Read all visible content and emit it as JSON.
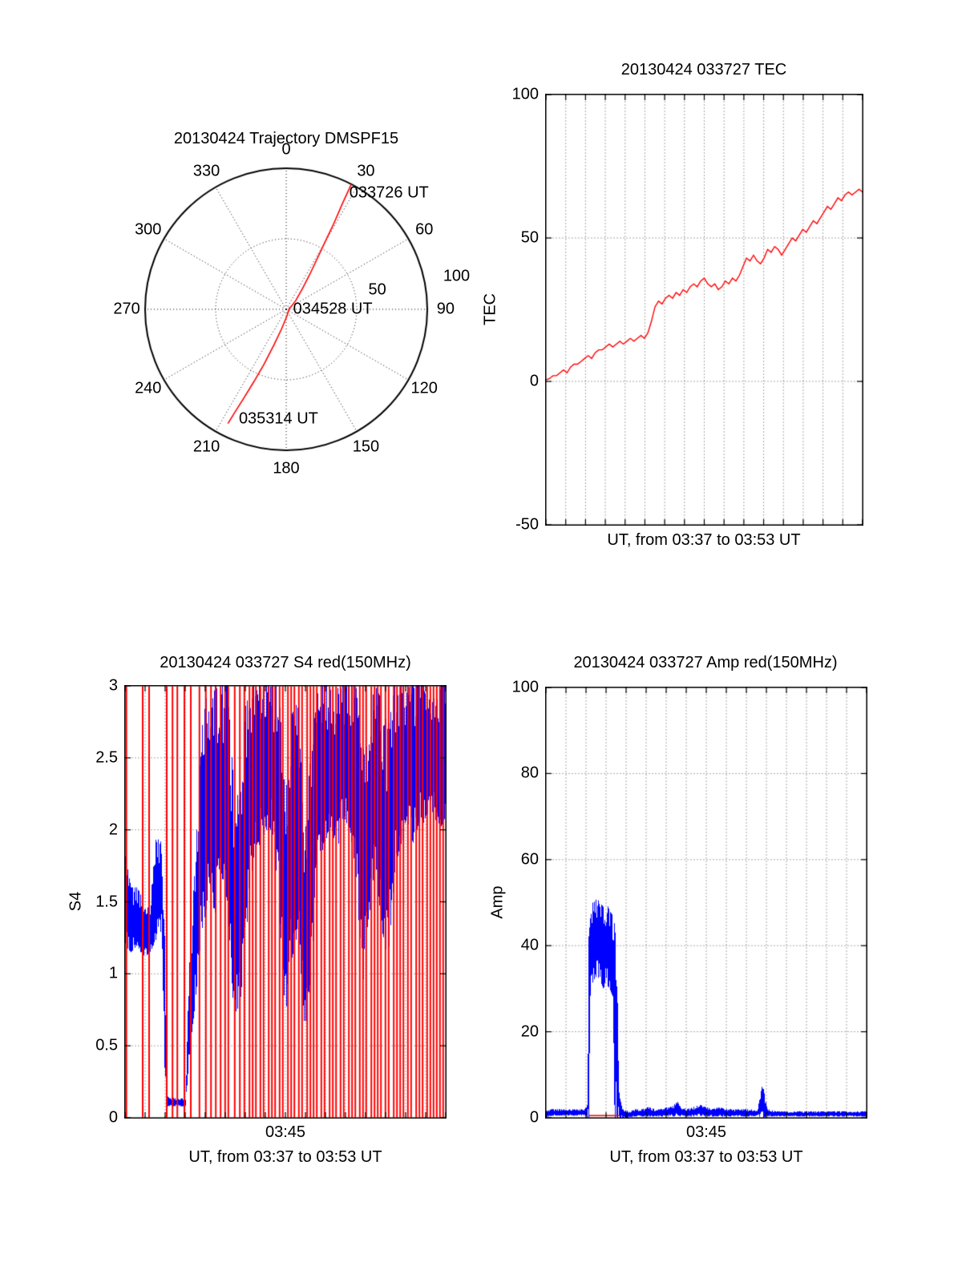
{
  "chart_data": [
    {
      "type": "line",
      "subtype": "polar-trajectory",
      "title": "20130424 Trajectory DMSPF15",
      "azimuth_tick_labels": [
        "0",
        "30",
        "60",
        "90",
        "120",
        "150",
        "180",
        "210",
        "240",
        "270",
        "300",
        "330"
      ],
      "radial_tick_labels": [
        {
          "text": "50",
          "az": 78,
          "r": 0.66
        },
        {
          "text": "100",
          "az": 79,
          "r": 1.23
        }
      ],
      "annotations": [
        {
          "text": "033726 UT",
          "az": 41.5,
          "r": 1.1
        },
        {
          "text": "034528 UT",
          "az": 90,
          "r": 0.33
        },
        {
          "text": "035314 UT",
          "az": 184,
          "r": 0.78
        }
      ],
      "series": [
        {
          "name": "satellite-pass-trajectory",
          "color": "#ff0000",
          "points_az_r": [
            [
              27.5,
              1.0
            ],
            [
              28,
              0.85
            ],
            [
              29,
              0.7
            ],
            [
              30,
              0.55
            ],
            [
              31.5,
              0.42
            ],
            [
              34,
              0.3
            ],
            [
              38,
              0.19
            ],
            [
              48,
              0.09
            ],
            [
              90,
              0.02
            ],
            [
              175,
              0.05
            ],
            [
              193,
              0.14
            ],
            [
              199,
              0.27
            ],
            [
              202,
              0.42
            ],
            [
              204,
              0.56
            ],
            [
              205.5,
              0.7
            ],
            [
              206.5,
              0.82
            ],
            [
              207,
              0.91
            ]
          ]
        }
      ]
    },
    {
      "type": "line",
      "title": "20130424 033727 TEC",
      "ylabel": "TEC",
      "xlabel": "UT, from 03:37 to 03:53 UT",
      "ylim": [
        -50,
        100
      ],
      "yticks": [
        100,
        50,
        0,
        -50
      ],
      "hgrid": [
        50,
        0
      ],
      "x_minute_intervals": 16,
      "line_color": "#ff0000",
      "values": [
        0.5,
        1,
        2,
        2,
        3,
        4,
        3,
        5,
        6,
        6,
        7,
        8,
        9,
        8,
        10,
        11,
        11,
        12,
        13,
        12,
        13,
        14,
        13,
        14,
        15,
        14,
        15,
        16,
        15,
        17,
        21,
        26,
        28,
        27,
        29,
        30,
        29,
        31,
        30,
        32,
        31,
        33,
        34,
        33,
        35,
        36,
        34,
        33,
        34,
        32,
        33,
        35,
        34,
        36,
        35,
        37,
        40,
        43,
        42,
        44,
        42,
        41,
        43,
        46,
        45,
        47,
        46,
        44,
        46,
        48,
        50,
        49,
        51,
        53,
        52,
        54,
        56,
        55,
        57,
        59,
        61,
        60,
        62,
        64,
        63,
        65,
        66,
        65,
        66,
        67,
        66
      ]
    },
    {
      "type": "line",
      "title": "20130424 033727 S4 red(150MHz)",
      "ylabel": "S4",
      "xlabel": "UT, from 03:37 to 03:53 UT",
      "xticks": [
        "03:45"
      ],
      "ylim": [
        0,
        3
      ],
      "yticks": [
        3,
        2.5,
        2,
        1.5,
        1,
        0.5,
        0
      ],
      "hgrid": [
        2.5,
        2,
        1.5,
        1,
        0.5
      ],
      "x_minute_intervals": 16,
      "envelope_color": "#0000ff",
      "red_line_color": "#ff0000",
      "blue_envelope": [
        [
          0.0,
          1.2,
          1.85
        ],
        [
          0.02,
          1.15,
          1.6
        ],
        [
          0.04,
          1.2,
          1.6
        ],
        [
          0.06,
          1.1,
          1.5
        ],
        [
          0.08,
          1.15,
          1.5
        ],
        [
          0.1,
          1.25,
          2.0
        ],
        [
          0.115,
          1.3,
          1.9
        ],
        [
          0.125,
          0.3,
          1.3
        ],
        [
          0.13,
          0.08,
          0.15
        ],
        [
          0.15,
          0.08,
          0.14
        ],
        [
          0.17,
          0.08,
          0.13
        ],
        [
          0.19,
          0.08,
          0.14
        ],
        [
          0.2,
          0.4,
          1.0
        ],
        [
          0.22,
          0.8,
          1.8
        ],
        [
          0.24,
          1.3,
          2.7
        ],
        [
          0.26,
          1.5,
          3.0
        ],
        [
          0.28,
          1.4,
          3.0
        ],
        [
          0.3,
          1.7,
          3.0
        ],
        [
          0.32,
          1.5,
          3.0
        ],
        [
          0.34,
          0.7,
          2.3
        ],
        [
          0.36,
          0.8,
          2.2
        ],
        [
          0.38,
          1.3,
          3.0
        ],
        [
          0.4,
          1.8,
          3.0
        ],
        [
          0.42,
          1.9,
          3.0
        ],
        [
          0.44,
          2.0,
          3.0
        ],
        [
          0.46,
          2.0,
          3.0
        ],
        [
          0.48,
          1.5,
          3.0
        ],
        [
          0.5,
          0.7,
          2.2
        ],
        [
          0.52,
          1.1,
          2.8
        ],
        [
          0.54,
          1.3,
          2.9
        ],
        [
          0.56,
          0.6,
          1.9
        ],
        [
          0.58,
          1.0,
          2.6
        ],
        [
          0.6,
          1.7,
          3.0
        ],
        [
          0.62,
          1.9,
          3.0
        ],
        [
          0.64,
          2.0,
          3.0
        ],
        [
          0.66,
          1.8,
          3.0
        ],
        [
          0.68,
          2.1,
          3.0
        ],
        [
          0.7,
          2.0,
          3.0
        ],
        [
          0.72,
          1.7,
          3.0
        ],
        [
          0.74,
          0.9,
          2.5
        ],
        [
          0.76,
          1.3,
          2.9
        ],
        [
          0.78,
          1.8,
          3.0
        ],
        [
          0.8,
          1.3,
          2.9
        ],
        [
          0.82,
          1.1,
          2.7
        ],
        [
          0.84,
          1.7,
          3.0
        ],
        [
          0.86,
          1.9,
          3.0
        ],
        [
          0.88,
          2.0,
          3.0
        ],
        [
          0.9,
          1.9,
          3.0
        ],
        [
          0.92,
          2.1,
          3.0
        ],
        [
          0.94,
          2.0,
          3.0
        ],
        [
          0.96,
          2.1,
          3.0
        ],
        [
          0.98,
          2.0,
          3.0
        ],
        [
          1.0,
          2.1,
          3.0
        ]
      ],
      "red_lines": [
        0.004,
        0.055,
        0.075,
        0.13,
        0.148,
        0.163,
        0.185,
        0.205,
        0.232,
        0.252,
        0.268,
        0.283,
        0.298,
        0.312,
        0.322,
        0.342,
        0.358,
        0.372,
        0.388,
        0.398,
        0.408,
        0.422,
        0.432,
        0.448,
        0.458,
        0.468,
        0.482,
        0.492,
        0.508,
        0.518,
        0.528,
        0.542,
        0.552,
        0.568,
        0.578,
        0.588,
        0.598,
        0.612,
        0.622,
        0.638,
        0.648,
        0.658,
        0.672,
        0.682,
        0.698,
        0.708,
        0.718,
        0.732,
        0.742,
        0.752,
        0.768,
        0.778,
        0.788,
        0.798,
        0.812,
        0.822,
        0.838,
        0.848,
        0.858,
        0.868,
        0.882,
        0.892,
        0.908,
        0.918,
        0.928,
        0.942,
        0.952,
        0.962,
        0.972,
        0.982,
        0.992
      ]
    },
    {
      "type": "line",
      "title": "20130424 033727 Amp red(150MHz)",
      "ylabel": "Amp",
      "xlabel": "UT, from 03:37 to 03:53 UT",
      "xticks": [
        "03:45"
      ],
      "ylim": [
        0,
        100
      ],
      "yticks": [
        100,
        80,
        60,
        40,
        20,
        0
      ],
      "hgrid": [
        80,
        60,
        40,
        20
      ],
      "x_minute_intervals": 16,
      "envelope_color": "#0000ff",
      "red_line_color": "#ff0000",
      "blue_envelope": [
        [
          0.0,
          0,
          1.5
        ],
        [
          0.02,
          0.5,
          2
        ],
        [
          0.04,
          0.5,
          2
        ],
        [
          0.06,
          0.5,
          2
        ],
        [
          0.08,
          0.5,
          2
        ],
        [
          0.1,
          0.5,
          2
        ],
        [
          0.12,
          0.5,
          2
        ],
        [
          0.13,
          0,
          3
        ],
        [
          0.135,
          0,
          45
        ],
        [
          0.14,
          30,
          50
        ],
        [
          0.15,
          32,
          50
        ],
        [
          0.16,
          33,
          51
        ],
        [
          0.17,
          32,
          50
        ],
        [
          0.18,
          30,
          49
        ],
        [
          0.19,
          31,
          50
        ],
        [
          0.2,
          30,
          48
        ],
        [
          0.21,
          28,
          47
        ],
        [
          0.215,
          0,
          45
        ],
        [
          0.22,
          0,
          40
        ],
        [
          0.225,
          0,
          25
        ],
        [
          0.23,
          0,
          5
        ],
        [
          0.24,
          0,
          2
        ],
        [
          0.26,
          0,
          1.5
        ],
        [
          0.28,
          0.3,
          2
        ],
        [
          0.3,
          0.3,
          2
        ],
        [
          0.32,
          0.3,
          2.5
        ],
        [
          0.34,
          0.3,
          2
        ],
        [
          0.36,
          0.3,
          2
        ],
        [
          0.38,
          0.3,
          2.5
        ],
        [
          0.4,
          0.3,
          3
        ],
        [
          0.41,
          0.5,
          4
        ],
        [
          0.42,
          0.3,
          2.5
        ],
        [
          0.44,
          0.3,
          2
        ],
        [
          0.46,
          0.3,
          2.5
        ],
        [
          0.48,
          0.5,
          3
        ],
        [
          0.5,
          0.3,
          2.5
        ],
        [
          0.52,
          0.3,
          2
        ],
        [
          0.54,
          0.3,
          2.5
        ],
        [
          0.56,
          0.3,
          2
        ],
        [
          0.58,
          0.3,
          2
        ],
        [
          0.6,
          0.3,
          2
        ],
        [
          0.62,
          0.3,
          2
        ],
        [
          0.64,
          0.3,
          2
        ],
        [
          0.66,
          0.3,
          2
        ],
        [
          0.675,
          0,
          8
        ],
        [
          0.69,
          0.3,
          2
        ],
        [
          0.72,
          0.3,
          1.5
        ],
        [
          0.76,
          0.3,
          1.5
        ],
        [
          0.8,
          0.3,
          1.5
        ],
        [
          0.84,
          0.3,
          1.5
        ],
        [
          0.88,
          0.3,
          1.5
        ],
        [
          0.92,
          0.3,
          1.5
        ],
        [
          0.96,
          0.3,
          1.5
        ],
        [
          1.0,
          0.3,
          1.5
        ]
      ],
      "red_segment": {
        "x_start": 0.135,
        "x_end": 0.23,
        "value": 0.5
      }
    }
  ]
}
